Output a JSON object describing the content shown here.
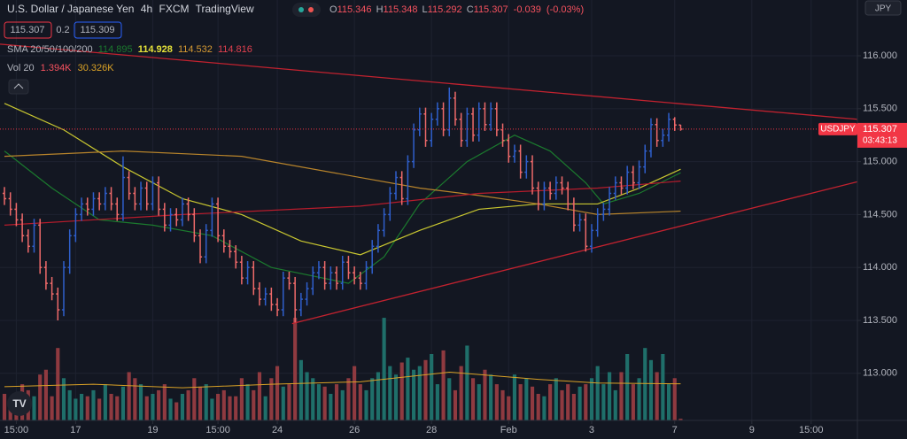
{
  "chart_data": {
    "type": "ohlc",
    "title": "U.S. Dollar / Japanese Yen",
    "interval": "4h",
    "exchange": "FXCM",
    "platform": "TradingView",
    "currency": "JPY",
    "ohlc_letters": [
      "O",
      "H",
      "L",
      "C"
    ],
    "change": -0.039,
    "change_pct": {
      "value": -0.03,
      "label": "(-0.03%)"
    },
    "sell_price": 115.307,
    "spread": 0.2,
    "buy_price": 115.309,
    "symbol_tag": "USDJPY",
    "countdown": "03:43:13",
    "sma_label": "SMA 20/50/100/200",
    "volume_legend": {
      "title": "Vol 20",
      "last_label": "1.394K",
      "ma_label": "30.326K"
    },
    "up_color": "#2f5fcc",
    "down_color": "#ef6a6a",
    "open": [
      114.7,
      114.65,
      114.55,
      114.45,
      114.3,
      114.2,
      114.4,
      114.0,
      113.85,
      113.75,
      113.6,
      114.0,
      114.3,
      114.5,
      114.6,
      114.55,
      114.65,
      114.6,
      114.7,
      114.6,
      114.5,
      114.85,
      114.7,
      114.6,
      114.75,
      114.6,
      114.8,
      114.55,
      114.4,
      114.5,
      114.45,
      114.6,
      114.5,
      114.3,
      114.1,
      114.35,
      114.6,
      114.3,
      114.2,
      114.15,
      114.05,
      113.9,
      114.0,
      113.8,
      113.7,
      113.75,
      113.65,
      113.6,
      113.9,
      113.85,
      113.6,
      113.7,
      113.8,
      113.95,
      114.0,
      113.85,
      113.95,
      113.85,
      114.05,
      113.95,
      113.9,
      113.85,
      114.0,
      114.2,
      114.35,
      114.5,
      114.7,
      114.85,
      114.65,
      115.0,
      115.3,
      115.45,
      115.2,
      115.4,
      115.5,
      115.3,
      115.6,
      115.4,
      115.2,
      115.45,
      115.25,
      115.5,
      115.35,
      115.5,
      115.3,
      115.2,
      115.05,
      115.1,
      114.9,
      115.0,
      114.75,
      114.6,
      114.75,
      114.7,
      114.8,
      114.75,
      114.6,
      114.4,
      114.45,
      114.2,
      114.35,
      114.5,
      114.55,
      114.7,
      114.8,
      114.75,
      114.9,
      114.8,
      114.95,
      115.1,
      115.35,
      115.2,
      115.25,
      115.4,
      115.346
    ],
    "high": [
      114.76,
      114.71,
      114.61,
      114.51,
      114.36,
      114.46,
      114.46,
      114.06,
      113.91,
      113.81,
      114.06,
      114.36,
      114.56,
      114.66,
      114.66,
      114.71,
      114.71,
      114.76,
      114.76,
      114.66,
      115.05,
      114.91,
      114.76,
      114.81,
      114.81,
      114.86,
      114.86,
      114.61,
      114.56,
      114.56,
      114.66,
      114.66,
      114.56,
      114.36,
      114.41,
      114.66,
      114.66,
      114.36,
      114.26,
      114.21,
      114.11,
      114.06,
      114.06,
      113.86,
      113.81,
      113.81,
      113.71,
      113.96,
      113.96,
      113.91,
      113.76,
      113.86,
      114.01,
      114.06,
      114.06,
      114.01,
      114.01,
      114.11,
      114.11,
      114.01,
      113.96,
      114.06,
      114.26,
      114.41,
      114.56,
      114.76,
      114.91,
      114.91,
      115.06,
      115.36,
      115.51,
      115.51,
      115.46,
      115.56,
      115.56,
      115.7,
      115.66,
      115.46,
      115.51,
      115.51,
      115.56,
      115.56,
      115.56,
      115.56,
      115.36,
      115.26,
      115.16,
      115.16,
      115.06,
      115.06,
      114.81,
      114.81,
      114.81,
      114.86,
      114.86,
      114.81,
      114.66,
      114.51,
      114.51,
      114.41,
      114.56,
      114.61,
      114.76,
      114.86,
      114.86,
      114.96,
      114.96,
      115.01,
      115.16,
      115.41,
      115.41,
      115.31,
      115.46,
      115.42,
      115.348
    ],
    "low": [
      114.59,
      114.49,
      114.39,
      114.24,
      114.14,
      114.14,
      113.94,
      113.79,
      113.69,
      113.5,
      113.54,
      113.94,
      114.24,
      114.44,
      114.49,
      114.49,
      114.54,
      114.54,
      114.54,
      114.44,
      114.44,
      114.64,
      114.54,
      114.54,
      114.54,
      114.54,
      114.49,
      114.34,
      114.34,
      114.39,
      114.39,
      114.44,
      114.24,
      114.04,
      114.04,
      114.29,
      114.24,
      114.14,
      114.09,
      113.99,
      113.84,
      113.84,
      113.74,
      113.64,
      113.64,
      113.59,
      113.54,
      113.54,
      113.79,
      113.48,
      113.54,
      113.64,
      113.74,
      113.89,
      113.79,
      113.79,
      113.79,
      113.79,
      113.89,
      113.84,
      113.79,
      113.79,
      113.94,
      114.14,
      114.29,
      114.44,
      114.64,
      114.59,
      114.59,
      114.94,
      115.24,
      115.14,
      115.14,
      115.34,
      115.24,
      115.24,
      115.34,
      115.14,
      115.14,
      115.19,
      115.19,
      115.29,
      115.29,
      115.24,
      115.14,
      114.99,
      114.99,
      114.84,
      114.84,
      114.69,
      114.54,
      114.54,
      114.64,
      114.64,
      114.69,
      114.54,
      114.34,
      114.34,
      114.15,
      114.14,
      114.29,
      114.44,
      114.49,
      114.64,
      114.69,
      114.69,
      114.74,
      114.74,
      114.89,
      115.04,
      115.14,
      115.14,
      115.19,
      115.29,
      115.292
    ],
    "close": [
      114.65,
      114.55,
      114.45,
      114.3,
      114.2,
      114.4,
      114.0,
      113.85,
      113.75,
      113.6,
      114.0,
      114.3,
      114.5,
      114.6,
      114.55,
      114.65,
      114.6,
      114.7,
      114.6,
      114.5,
      114.85,
      114.7,
      114.6,
      114.75,
      114.6,
      114.8,
      114.55,
      114.4,
      114.5,
      114.45,
      114.6,
      114.5,
      114.3,
      114.1,
      114.35,
      114.6,
      114.3,
      114.2,
      114.15,
      114.05,
      113.9,
      114.0,
      113.8,
      113.7,
      113.75,
      113.65,
      113.6,
      113.9,
      113.85,
      113.6,
      113.7,
      113.8,
      113.95,
      114.0,
      113.85,
      113.95,
      113.85,
      114.05,
      113.95,
      113.9,
      113.85,
      114.0,
      114.2,
      114.35,
      114.5,
      114.7,
      114.85,
      114.65,
      115.0,
      115.3,
      115.45,
      115.2,
      115.4,
      115.5,
      115.3,
      115.6,
      115.4,
      115.2,
      115.45,
      115.25,
      115.5,
      115.35,
      115.5,
      115.3,
      115.2,
      115.05,
      115.1,
      114.9,
      115.0,
      114.75,
      114.6,
      114.75,
      114.7,
      114.8,
      114.75,
      114.6,
      114.4,
      114.45,
      114.2,
      114.35,
      114.5,
      114.55,
      114.7,
      114.8,
      114.75,
      114.9,
      114.8,
      114.95,
      115.1,
      115.35,
      115.2,
      115.25,
      115.4,
      115.346,
      115.307
    ],
    "volume": {
      "up_color": "#1f6f6a",
      "down_color": "#8f3a40",
      "ylim": [
        0,
        88
      ],
      "values": [
        22,
        15,
        18,
        30,
        25,
        20,
        38,
        42,
        20,
        60,
        35,
        25,
        18,
        22,
        20,
        25,
        18,
        30,
        22,
        20,
        28,
        40,
        35,
        30,
        20,
        22,
        25,
        30,
        18,
        15,
        22,
        25,
        35,
        28,
        30,
        18,
        22,
        25,
        20,
        20,
        35,
        30,
        25,
        40,
        20,
        35,
        45,
        28,
        30,
        85,
        50,
        40,
        35,
        30,
        28,
        22,
        30,
        25,
        35,
        45,
        30,
        25,
        35,
        40,
        85,
        45,
        38,
        48,
        52,
        42,
        45,
        50,
        55,
        30,
        58,
        35,
        25,
        45,
        62,
        35,
        30,
        42,
        38,
        30,
        25,
        20,
        38,
        30,
        35,
        28,
        22,
        20,
        30,
        35,
        25,
        30,
        22,
        28,
        30,
        35,
        45,
        30,
        40,
        25,
        40,
        55,
        30,
        35,
        60,
        50,
        40,
        55,
        30,
        35,
        1.394
      ]
    },
    "vol_ma": {
      "color": "#d9a126",
      "x": [
        0,
        15,
        30,
        45,
        60,
        75,
        90,
        100,
        114
      ],
      "values": [
        28,
        30,
        27,
        30,
        32,
        40,
        34,
        31,
        30.326
      ]
    },
    "smas": [
      {
        "color": "#1b7a2e",
        "x": [
          0,
          8,
          16,
          25,
          35,
          45,
          58,
          64,
          70,
          78,
          86,
          92,
          98,
          101,
          107,
          114
        ],
        "values": [
          115.1,
          114.75,
          114.45,
          114.4,
          114.3,
          114.0,
          113.85,
          114.1,
          114.6,
          115.0,
          115.25,
          115.1,
          114.8,
          114.6,
          114.7,
          114.895
        ]
      },
      {
        "color": "#c9c730",
        "x": [
          0,
          10,
          20,
          30,
          40,
          50,
          60,
          70,
          80,
          90,
          100,
          107,
          114
        ],
        "values": [
          115.55,
          115.3,
          114.95,
          114.65,
          114.5,
          114.25,
          114.12,
          114.35,
          114.55,
          114.6,
          114.6,
          114.75,
          114.928
        ]
      },
      {
        "color": "#b8842b",
        "x": [
          0,
          20,
          40,
          60,
          70,
          80,
          90,
          100,
          114
        ],
        "values": [
          115.05,
          115.1,
          115.05,
          114.85,
          114.75,
          114.68,
          114.6,
          114.5,
          114.532
        ]
      },
      {
        "color": "#b71c2c",
        "x": [
          0,
          30,
          60,
          80,
          100,
          114
        ],
        "values": [
          114.4,
          114.5,
          114.58,
          114.7,
          114.75,
          114.816
        ]
      }
    ],
    "trendlines": [
      {
        "color": "#c2222f",
        "x": [
          -0.75,
          152
        ],
        "values": [
          116.11,
          115.36
        ]
      },
      {
        "color": "#c2222f",
        "x": [
          48.5,
          143.8
        ],
        "values": [
          113.47,
          114.81
        ]
      }
    ],
    "xlim": [
      -0.75,
      143.8
    ],
    "ylim": [
      112.555,
      116.527
    ],
    "yticks": [
      {
        "value": 116,
        "label": "116.000"
      },
      {
        "value": 115.5,
        "label": "115.500"
      },
      {
        "value": 115,
        "label": "115.000"
      },
      {
        "value": 114.5,
        "label": "114.500"
      },
      {
        "value": 114,
        "label": "114.000"
      },
      {
        "value": 113.5,
        "label": "113.500"
      },
      {
        "value": 113,
        "label": "113.000"
      }
    ],
    "xticks": [
      {
        "value": 2,
        "label": "15:00"
      },
      {
        "value": 12,
        "label": "17"
      },
      {
        "value": 25,
        "label": "19"
      },
      {
        "value": 36,
        "label": "15:00"
      },
      {
        "value": 46,
        "label": "24"
      },
      {
        "value": 59,
        "label": "26"
      },
      {
        "value": 72,
        "label": "28"
      },
      {
        "value": 85,
        "label": "Feb"
      },
      {
        "value": 99,
        "label": "3"
      },
      {
        "value": 113,
        "label": "7"
      },
      {
        "value": 126,
        "label": "9"
      },
      {
        "value": 136,
        "label": "15:00"
      }
    ],
    "grid": true
  }
}
